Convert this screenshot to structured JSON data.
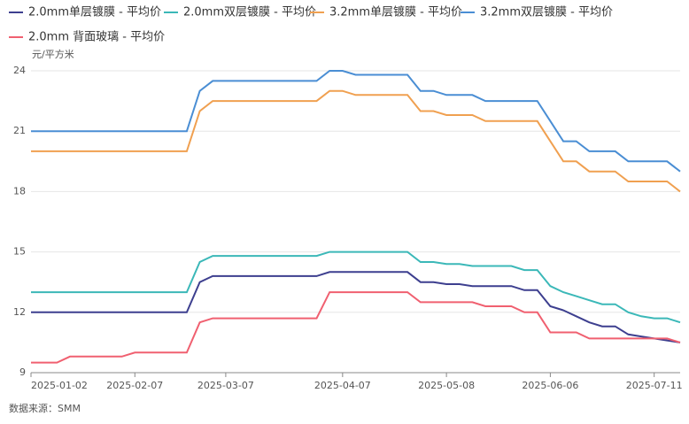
{
  "chart_data": {
    "type": "line",
    "y_unit": "元/平方米",
    "source": "数据来源：SMM",
    "categories": [
      "2025-01-02",
      null,
      null,
      null,
      null,
      null,
      null,
      null,
      "2025-02-07",
      null,
      null,
      null,
      null,
      null,
      null,
      "2025-03-07",
      null,
      null,
      null,
      null,
      null,
      null,
      null,
      null,
      "2025-04-07",
      null,
      null,
      null,
      null,
      null,
      null,
      null,
      "2025-05-08",
      null,
      null,
      null,
      null,
      null,
      null,
      null,
      "2025-06-06",
      null,
      null,
      null,
      null,
      null,
      null,
      null,
      "2025-07-11",
      null,
      null
    ],
    "ylim": [
      9,
      24
    ],
    "yticks": [
      9,
      12,
      15,
      18,
      21,
      24
    ],
    "grid": true,
    "series": [
      {
        "name": "2.0mm单层镀膜 - 平均价",
        "color": "#3d3f8f",
        "values": [
          12,
          12,
          12,
          12,
          12,
          12,
          12,
          12,
          12,
          12,
          12,
          12,
          12,
          13.5,
          13.8,
          13.8,
          13.8,
          13.8,
          13.8,
          13.8,
          13.8,
          13.8,
          13.8,
          14,
          14,
          14,
          14,
          14,
          14,
          14,
          13.5,
          13.5,
          13.4,
          13.4,
          13.3,
          13.3,
          13.3,
          13.3,
          13.1,
          13.1,
          12.3,
          12.1,
          11.8,
          11.5,
          11.3,
          11.3,
          10.9,
          10.8,
          10.7,
          10.6,
          10.5
        ]
      },
      {
        "name": "2.0mm双层镀膜 - 平均价",
        "color": "#3bb8b8",
        "values": [
          13,
          13,
          13,
          13,
          13,
          13,
          13,
          13,
          13,
          13,
          13,
          13,
          13,
          14.5,
          14.8,
          14.8,
          14.8,
          14.8,
          14.8,
          14.8,
          14.8,
          14.8,
          14.8,
          15,
          15,
          15,
          15,
          15,
          15,
          15,
          14.5,
          14.5,
          14.4,
          14.4,
          14.3,
          14.3,
          14.3,
          14.3,
          14.1,
          14.1,
          13.3,
          13,
          12.8,
          12.6,
          12.4,
          12.4,
          12,
          11.8,
          11.7,
          11.7,
          11.5
        ]
      },
      {
        "name": "3.2mm单层镀膜 - 平均价",
        "color": "#f0a050",
        "values": [
          20,
          20,
          20,
          20,
          20,
          20,
          20,
          20,
          20,
          20,
          20,
          20,
          20,
          22,
          22.5,
          22.5,
          22.5,
          22.5,
          22.5,
          22.5,
          22.5,
          22.5,
          22.5,
          23,
          23,
          22.8,
          22.8,
          22.8,
          22.8,
          22.8,
          22,
          22,
          21.8,
          21.8,
          21.8,
          21.5,
          21.5,
          21.5,
          21.5,
          21.5,
          20.5,
          19.5,
          19.5,
          19,
          19,
          19,
          18.5,
          18.5,
          18.5,
          18.5,
          18
        ]
      },
      {
        "name": "3.2mm双层镀膜 - 平均价",
        "color": "#4a8ed4",
        "values": [
          21,
          21,
          21,
          21,
          21,
          21,
          21,
          21,
          21,
          21,
          21,
          21,
          21,
          23,
          23.5,
          23.5,
          23.5,
          23.5,
          23.5,
          23.5,
          23.5,
          23.5,
          23.5,
          24,
          24,
          23.8,
          23.8,
          23.8,
          23.8,
          23.8,
          23,
          23,
          22.8,
          22.8,
          22.8,
          22.5,
          22.5,
          22.5,
          22.5,
          22.5,
          21.5,
          20.5,
          20.5,
          20,
          20,
          20,
          19.5,
          19.5,
          19.5,
          19.5,
          19
        ]
      },
      {
        "name": "2.0mm 背面玻璃 - 平均价",
        "color": "#f06070",
        "values": [
          9.5,
          9.5,
          9.5,
          9.8,
          9.8,
          9.8,
          9.8,
          9.8,
          10,
          10,
          10,
          10,
          10,
          11.5,
          11.7,
          11.7,
          11.7,
          11.7,
          11.7,
          11.7,
          11.7,
          11.7,
          11.7,
          13,
          13,
          13,
          13,
          13,
          13,
          13,
          12.5,
          12.5,
          12.5,
          12.5,
          12.5,
          12.3,
          12.3,
          12.3,
          12,
          12,
          11,
          11,
          11,
          10.7,
          10.7,
          10.7,
          10.7,
          10.7,
          10.7,
          10.7,
          10.5
        ]
      }
    ]
  }
}
